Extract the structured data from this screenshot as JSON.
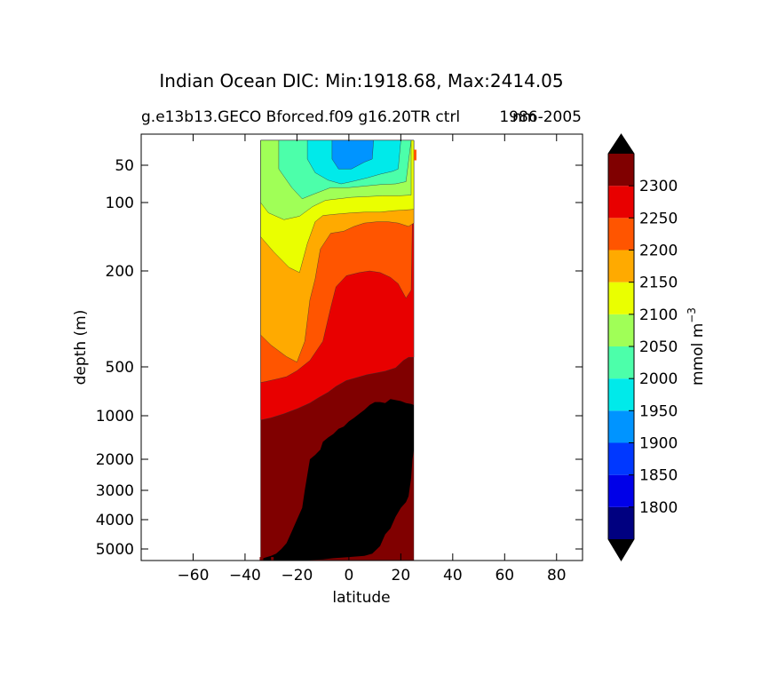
{
  "chart_data": {
    "type": "contour",
    "title": "Indian Ocean DIC: Min:1918.68, Max:2414.05",
    "subtitle_left": "g.e13b13.GECO Bforced.f09 g16.20TR ctrl",
    "subtitle_right": "1986-2005",
    "subtitle_overlap": "nm",
    "xlabel": "latitude",
    "ylabel": "depth (m)",
    "xlim": [
      -80,
      90
    ],
    "xticks": [
      -60,
      -40,
      -20,
      0,
      20,
      40,
      60,
      80
    ],
    "xtick_labels": [
      "−60",
      "−40",
      "−20",
      "0",
      "20",
      "40",
      "60",
      "80"
    ],
    "yscale": "custom-depth",
    "ylim": [
      5500,
      0
    ],
    "yticks": [
      50,
      100,
      200,
      500,
      1000,
      2000,
      3000,
      4000,
      5000
    ],
    "ytick_labels": [
      "50",
      "100",
      "200",
      "500",
      "1000",
      "2000",
      "3000",
      "4000",
      "5000"
    ],
    "data_extent_lat": [
      -34,
      26
    ],
    "grid": false,
    "colorbar": {
      "label": "mmol m",
      "label_exponent": "−3",
      "levels": [
        1750,
        1800,
        1850,
        1900,
        1950,
        2000,
        2050,
        2100,
        2150,
        2200,
        2250,
        2300,
        2350
      ],
      "tick_labels": [
        "1800",
        "1850",
        "1900",
        "1950",
        "2000",
        "2050",
        "2100",
        "2150",
        "2200",
        "2250",
        "2300"
      ],
      "colors": [
        "#000080",
        "#0000e8",
        "#0038ff",
        "#0094ff",
        "#00eaea",
        "#4cffaa",
        "#a0ff57",
        "#eaff00",
        "#ffaa00",
        "#ff5500",
        "#e80000",
        "#800000"
      ],
      "extend": "both",
      "over_color": "#000000",
      "under_color": "#000000"
    },
    "contours": [
      {
        "level_color": "#0094ff",
        "points": [
          [
            -6.5,
            10
          ],
          [
            -6.5,
            40
          ],
          [
            -4,
            55
          ],
          [
            1,
            55
          ],
          [
            6,
            45
          ],
          [
            9,
            40
          ],
          [
            9.5,
            10
          ]
        ]
      },
      {
        "level_color": "#00eaea",
        "points": [
          [
            -16,
            10
          ],
          [
            -16,
            40
          ],
          [
            -13,
            60
          ],
          [
            -8,
            70
          ],
          [
            -3,
            75
          ],
          [
            1,
            72
          ],
          [
            7,
            67
          ],
          [
            12,
            62
          ],
          [
            17,
            58
          ],
          [
            19,
            55
          ],
          [
            20,
            10
          ]
        ]
      },
      {
        "level_color": "#4cffaa",
        "points": [
          [
            -27,
            10
          ],
          [
            -27,
            55
          ],
          [
            -22,
            80
          ],
          [
            -18,
            95
          ],
          [
            -13,
            88
          ],
          [
            -7,
            80
          ],
          [
            0,
            80
          ],
          [
            6,
            78
          ],
          [
            12,
            76
          ],
          [
            18,
            75
          ],
          [
            22,
            72
          ],
          [
            24,
            10
          ]
        ]
      },
      {
        "level_color": "#a0ff57",
        "points": [
          [
            -34,
            10
          ],
          [
            -34,
            100
          ],
          [
            -31,
            115
          ],
          [
            -25,
            125
          ],
          [
            -19,
            120
          ],
          [
            -14,
            106
          ],
          [
            -9,
            97
          ],
          [
            -4,
            95
          ],
          [
            1,
            93
          ],
          [
            7,
            92
          ],
          [
            13,
            91
          ],
          [
            19,
            91
          ],
          [
            24,
            90
          ],
          [
            24,
            10
          ]
        ]
      },
      {
        "level_color": "#eaff00",
        "points": [
          [
            -34,
            10
          ],
          [
            -34,
            80
          ],
          [
            -34,
            150
          ],
          [
            -29,
            172
          ],
          [
            -23,
            195
          ],
          [
            -19,
            205
          ],
          [
            -16,
            160
          ],
          [
            -13,
            128
          ],
          [
            -10,
            119
          ],
          [
            -5,
            117
          ],
          [
            1,
            115
          ],
          [
            6,
            114
          ],
          [
            12,
            114
          ],
          [
            17,
            112
          ],
          [
            21,
            111
          ],
          [
            25,
            110
          ],
          [
            25,
            10
          ]
        ]
      },
      {
        "level_color": "#ffaa00",
        "points": [
          [
            -34,
            10
          ],
          [
            -34,
            400
          ],
          [
            -30,
            432
          ],
          [
            -24,
            468
          ],
          [
            -20,
            485
          ],
          [
            -17,
            420
          ],
          [
            -15,
            290
          ],
          [
            -13,
            225
          ],
          [
            -11,
            168
          ],
          [
            -7,
            145
          ],
          [
            -2,
            142
          ],
          [
            2,
            135
          ],
          [
            6,
            130
          ],
          [
            11,
            128
          ],
          [
            15,
            128
          ],
          [
            19,
            130
          ],
          [
            23,
            135
          ],
          [
            25,
            130
          ],
          [
            25,
            10
          ]
        ]
      },
      {
        "level_color": "#ff5500",
        "points": [
          [
            -34,
            10
          ],
          [
            -34,
            660
          ],
          [
            -32,
            650
          ],
          [
            -27,
            620
          ],
          [
            -24,
            600
          ],
          [
            -20,
            540
          ],
          [
            -15,
            480
          ],
          [
            -10,
            420
          ],
          [
            -7,
            315
          ],
          [
            -5,
            250
          ],
          [
            -1,
            215
          ],
          [
            4,
            205
          ],
          [
            8,
            200
          ],
          [
            12,
            205
          ],
          [
            16,
            220
          ],
          [
            19,
            240
          ],
          [
            22,
            285
          ],
          [
            24,
            260
          ],
          [
            25,
            10
          ]
        ]
      },
      {
        "level_color": "#e80000",
        "points": [
          [
            -34,
            10
          ],
          [
            -34,
            1100
          ],
          [
            -30,
            1050
          ],
          [
            -25,
            980
          ],
          [
            -20,
            930
          ],
          [
            -15,
            870
          ],
          [
            -12,
            820
          ],
          [
            -8,
            760
          ],
          [
            -5,
            700
          ],
          [
            -1,
            640
          ],
          [
            3,
            610
          ],
          [
            7,
            580
          ],
          [
            11,
            560
          ],
          [
            14,
            545
          ],
          [
            18,
            510
          ],
          [
            21,
            480
          ],
          [
            23,
            470
          ],
          [
            25,
            470
          ],
          [
            25,
            10
          ]
        ]
      },
      {
        "level_color": "#800000",
        "points": [
          [
            -34,
            10
          ],
          [
            -34,
            5500
          ],
          [
            -34,
            5500
          ],
          [
            25,
            5500
          ],
          [
            25,
            10
          ]
        ]
      }
    ],
    "seafloor": [
      [
        -34,
        5500
      ],
      [
        -33,
        5400
      ],
      [
        -30,
        5300
      ],
      [
        -28,
        5200
      ],
      [
        -26,
        5000
      ],
      [
        -24,
        4800
      ],
      [
        -22,
        4400
      ],
      [
        -20,
        4000
      ],
      [
        -18,
        3600
      ],
      [
        -17,
        3000
      ],
      [
        -16,
        2500
      ],
      [
        -15,
        2000
      ],
      [
        -13,
        1900
      ],
      [
        -11,
        1780
      ],
      [
        -10,
        1600
      ],
      [
        -8,
        1500
      ],
      [
        -6,
        1420
      ],
      [
        -4,
        1300
      ],
      [
        -2,
        1250
      ],
      [
        0,
        1130
      ],
      [
        2,
        1050
      ],
      [
        4,
        980
      ],
      [
        6,
        940
      ],
      [
        8,
        890
      ],
      [
        10,
        860
      ],
      [
        12,
        860
      ],
      [
        14,
        870
      ],
      [
        16,
        830
      ],
      [
        18,
        840
      ],
      [
        20,
        850
      ],
      [
        22,
        870
      ],
      [
        24,
        880
      ],
      [
        25,
        890
      ],
      [
        25,
        1800
      ],
      [
        24.5,
        2000
      ],
      [
        24,
        2600
      ],
      [
        23,
        3200
      ],
      [
        22,
        3400
      ],
      [
        20,
        3600
      ],
      [
        18,
        3900
      ],
      [
        16,
        4300
      ],
      [
        14,
        4500
      ],
      [
        12,
        4900
      ],
      [
        9,
        5200
      ],
      [
        6,
        5300
      ],
      [
        0,
        5350
      ],
      [
        -6,
        5400
      ],
      [
        -10,
        5450
      ],
      [
        -20,
        5500
      ]
    ]
  }
}
